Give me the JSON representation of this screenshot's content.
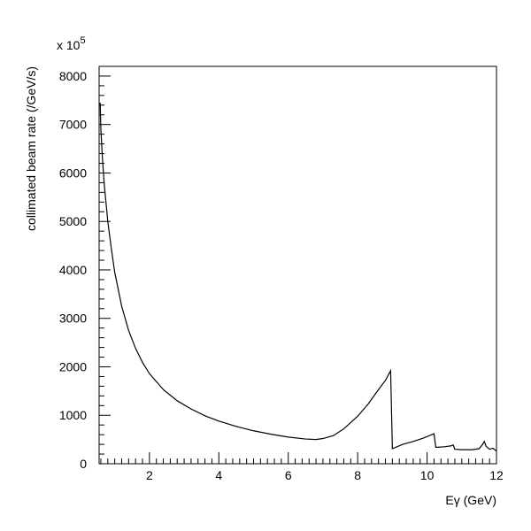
{
  "chart_data": {
    "type": "line",
    "title": "",
    "xlabel": "Eγ (GeV)",
    "ylabel": "collimated beam rate (/GeV/s)",
    "y_multiplier_label": "x 10",
    "y_multiplier_exponent": "5",
    "xlim": [
      0.55,
      12
    ],
    "ylim": [
      0,
      8200
    ],
    "x_ticks": [
      2,
      4,
      6,
      8,
      10,
      12
    ],
    "y_ticks": [
      0,
      1000,
      2000,
      3000,
      4000,
      5000,
      6000,
      7000,
      8000
    ],
    "grid": false,
    "legend": "none",
    "series": [
      {
        "x": [
          0.58,
          0.6,
          0.65,
          0.7,
          0.8,
          0.9,
          1.0,
          1.2,
          1.4,
          1.6,
          1.8,
          2.0,
          2.4,
          2.8,
          3.2,
          3.6,
          4.0,
          4.5,
          5.0,
          5.5,
          6.0,
          6.5,
          6.8,
          7.0,
          7.3,
          7.6,
          8.0,
          8.3,
          8.6,
          8.8,
          8.95,
          9.0,
          9.3,
          9.6,
          9.9,
          10.2,
          10.25,
          10.3,
          10.5,
          10.7,
          10.75,
          10.8,
          11.0,
          11.3,
          11.5,
          11.6,
          11.65,
          11.7,
          11.8,
          11.9,
          12.0
        ],
        "y": [
          7450,
          6900,
          6250,
          5750,
          5000,
          4450,
          3950,
          3250,
          2750,
          2380,
          2090,
          1860,
          1530,
          1300,
          1130,
          990,
          880,
          770,
          680,
          610,
          550,
          510,
          500,
          520,
          580,
          720,
          980,
          1230,
          1530,
          1720,
          1920,
          310,
          400,
          460,
          530,
          620,
          340,
          340,
          350,
          370,
          390,
          300,
          290,
          290,
          310,
          400,
          460,
          360,
          300,
          320,
          260
        ],
        "color": "#000000"
      }
    ]
  }
}
